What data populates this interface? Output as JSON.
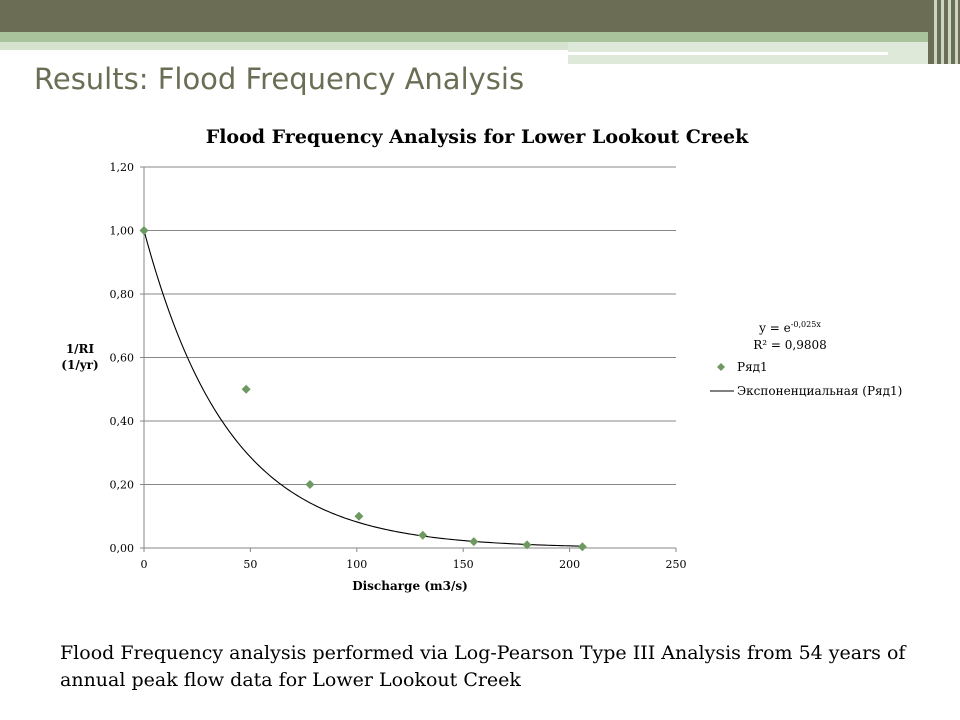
{
  "slide": {
    "title": "Results:  Flood Frequency Analysis",
    "caption": "Flood Frequency analysis performed via Log-Pearson Type III Analysis from 54 years of annual peak flow data for Lower Lookout Creek"
  },
  "colors": {
    "header_bar": "#6b6e55",
    "accent_band": "#a9c39d",
    "light_band": "#d6e3cf",
    "marker": "#6e9a62",
    "trendline": "#000000",
    "grid": "#878787"
  },
  "chart_data": {
    "type": "scatter",
    "title": "Flood Frequency Analysis for Lower Lookout Creek",
    "xlabel": "Discharge (m3/s)",
    "ylabel": [
      "1/RI",
      "(1/yr)"
    ],
    "xlim": [
      0,
      250
    ],
    "ylim": [
      0,
      1.2
    ],
    "xticks": [
      0,
      50,
      100,
      150,
      200,
      250
    ],
    "xtick_labels": [
      "0",
      "50",
      "100",
      "150",
      "200",
      "250"
    ],
    "yticks": [
      0,
      0.2,
      0.4,
      0.6,
      0.8,
      1.0,
      1.2
    ],
    "ytick_labels": [
      "0,00",
      "0,20",
      "0,40",
      "0,60",
      "0,80",
      "1,00",
      "1,20"
    ],
    "grid": "horizontal",
    "legend_position": "right",
    "series": [
      {
        "name": "Ряд1",
        "x": [
          0,
          48,
          78,
          101,
          131,
          155,
          180,
          206
        ],
        "y": [
          1.0,
          0.5,
          0.2,
          0.1,
          0.04,
          0.02,
          0.01,
          0.004
        ]
      }
    ],
    "trendline": {
      "name": "Экспоненциальная (Ряд1)",
      "type": "exponential",
      "a": 1,
      "b": -0.025,
      "equation_text": "y = e",
      "equation_exponent": "-0,025x",
      "r2_text": "R² = 0,9808"
    }
  }
}
